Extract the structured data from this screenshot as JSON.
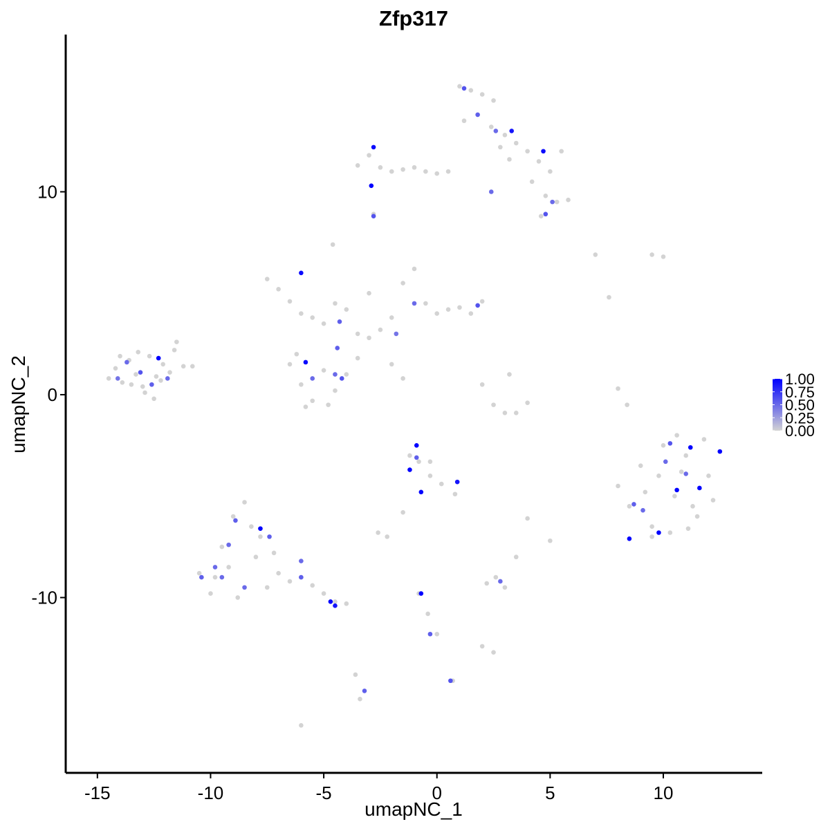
{
  "chart_data": {
    "type": "scatter",
    "title": "Zfp317",
    "x_label": "umapNC_1",
    "y_label": "umapNC_2",
    "xlim": [
      -16.4,
      14.37
    ],
    "ylim": [
      -18.64,
      17.75
    ],
    "xticks": [
      -15,
      -10,
      -5,
      0,
      5,
      10
    ],
    "yticks": [
      -10,
      0,
      10
    ],
    "color_low": "#d3d3d3",
    "color_high": "#0000ff",
    "colorbar_lim": [
      0,
      1
    ],
    "colorbar_ticks": [
      {
        "value": 0,
        "label": "0.00"
      },
      {
        "value": 0.25,
        "label": "0.25"
      },
      {
        "value": 0.5,
        "label": "0.50"
      },
      {
        "value": 0.75,
        "label": "0.75"
      },
      {
        "value": 1,
        "label": "1.00"
      }
    ],
    "x": [
      -14.5,
      -14.2,
      -13.9,
      -13.6,
      -13.3,
      -13.0,
      -12.7,
      -12.4,
      -12.1,
      -11.8,
      -11.5,
      -11.2,
      -10.8,
      -14.0,
      -13.5,
      -12.9,
      -12.2,
      -11.6,
      -13.2,
      -12.5,
      1.0,
      1.5,
      2.0,
      2.5,
      1.2,
      1.8,
      2.4,
      3.0,
      3.5,
      4.0,
      4.5,
      5.0,
      5.5,
      4.2,
      4.8,
      5.3,
      5.8,
      4.6,
      3.2,
      2.8,
      -3.5,
      -3.0,
      -2.5,
      -2.0,
      -1.5,
      -1.0,
      -0.5,
      0.0,
      0.5,
      -2.8,
      -7.5,
      -7.0,
      -6.5,
      -6.0,
      -5.5,
      -5.0,
      -4.5,
      -4.0,
      -3.5,
      -3.0,
      -2.5,
      -2.0,
      -1.5,
      -1.0,
      -0.5,
      0.0,
      0.5,
      1.0,
      1.5,
      2.0,
      -6.5,
      -6.0,
      -5.5,
      -5.0,
      -4.5,
      -4.0,
      -3.5,
      -5.8,
      -4.8,
      -6.2,
      -4.6,
      -3.0,
      -2.0,
      -1.5,
      2.0,
      2.5,
      3.0,
      3.5,
      4.0,
      3.2,
      8.0,
      8.5,
      9.0,
      9.5,
      10.0,
      10.5,
      11.0,
      11.5,
      12.0,
      12.5,
      9.2,
      9.8,
      10.3,
      10.8,
      11.3,
      11.8,
      9.5,
      10.6,
      11.1,
      12.2,
      -10.5,
      -10.0,
      -9.5,
      -9.0,
      -8.5,
      -8.0,
      -7.5,
      -7.0,
      -6.5,
      -6.0,
      -5.5,
      -5.0,
      -4.5,
      -4.0,
      -9.2,
      -8.2,
      -7.8,
      -8.8,
      -9.8,
      -7.2,
      -1.2,
      -0.8,
      -0.3,
      0.2,
      0.8,
      -2.6,
      -2.2,
      2.2,
      2.6,
      3.0,
      2.0,
      2.5,
      -3.6,
      -3.4,
      -0.8,
      -0.4,
      0.0,
      5.0,
      8.4,
      8.0,
      7.0,
      9.5,
      10.0,
      7.6,
      -0.3,
      -1.5,
      3.5,
      0.7,
      -6.0,
      4.0,
      -13.7,
      -13.1,
      -12.3,
      -11.9,
      -14.1,
      -12.6,
      1.2,
      1.8,
      2.6,
      3.3,
      4.7,
      4.8,
      5.1,
      2.4,
      -2.8,
      -2.9,
      -2.8,
      -6.0,
      -5.8,
      -4.3,
      -4.5,
      -4.4,
      -1.0,
      1.8,
      -5.5,
      -1.8,
      -4.2,
      10.3,
      11.2,
      12.5,
      10.6,
      11.6,
      9.8,
      8.5,
      8.7,
      11.0,
      10.1,
      9.1,
      -1.2,
      -0.9,
      -0.7,
      0.9,
      -0.9,
      -7.8,
      -8.9,
      -9.8,
      -10.4,
      -9.2,
      -7.4,
      -6.0,
      -4.7,
      -4.5,
      -6.0,
      -8.5,
      -9.5,
      -0.7,
      -0.3,
      0.6,
      2.8,
      -3.2
    ],
    "y": [
      0.8,
      1.3,
      0.6,
      1.7,
      1.0,
      0.4,
      1.9,
      0.9,
      1.5,
      1.1,
      2.6,
      1.4,
      1.4,
      1.9,
      0.5,
      0.1,
      0.7,
      2.2,
      2.1,
      -0.2,
      15.2,
      15.0,
      14.8,
      14.5,
      13.5,
      13.8,
      13.2,
      12.8,
      12.4,
      12.0,
      11.5,
      11.0,
      12.0,
      10.5,
      9.8,
      9.5,
      9.6,
      8.8,
      11.6,
      12.2,
      11.3,
      11.8,
      11.2,
      11.0,
      11.1,
      11.2,
      11.0,
      10.9,
      11.0,
      8.9,
      5.7,
      5.2,
      4.6,
      4.0,
      3.8,
      3.5,
      4.5,
      4.2,
      3.0,
      2.8,
      3.2,
      3.8,
      5.5,
      6.2,
      4.5,
      4.0,
      4.2,
      4.3,
      4.0,
      4.6,
      1.5,
      0.5,
      -0.3,
      1.2,
      0.2,
      1.0,
      1.8,
      -0.6,
      -0.5,
      2.0,
      7.4,
      5.0,
      1.5,
      0.8,
      0.5,
      -0.5,
      -0.9,
      -0.9,
      -0.4,
      1.0,
      -4.5,
      -5.5,
      -3.5,
      -6.5,
      -2.5,
      -5.0,
      -3.0,
      -6.0,
      -4.0,
      -2.8,
      -4.8,
      -4.0,
      -6.8,
      -3.8,
      -5.5,
      -2.2,
      -7.0,
      -2.0,
      -6.6,
      -5.2,
      -8.8,
      -9.8,
      -7.5,
      -6.0,
      -5.3,
      -8.0,
      -9.5,
      -8.8,
      -9.2,
      -9.0,
      -9.4,
      -9.8,
      -10.2,
      -10.3,
      -8.5,
      -6.5,
      -7.0,
      -10.0,
      -9.0,
      -7.8,
      -3.0,
      -3.3,
      -4.0,
      -4.4,
      -4.9,
      -6.8,
      -7.0,
      -9.3,
      -9.0,
      -9.5,
      -12.4,
      -12.7,
      -13.8,
      -15.0,
      -9.8,
      -10.8,
      -11.8,
      -7.2,
      -0.5,
      0.3,
      6.9,
      6.9,
      6.8,
      4.8,
      -3.3,
      -5.8,
      -8.0,
      -14.1,
      -16.3,
      -6.1,
      1.6,
      1.1,
      1.8,
      0.8,
      0.8,
      0.5,
      15.1,
      13.8,
      13.0,
      13.0,
      12.0,
      8.9,
      9.5,
      10.0,
      12.2,
      10.3,
      8.8,
      6.0,
      1.6,
      3.6,
      1.0,
      2.3,
      4.5,
      4.4,
      0.8,
      3.0,
      0.8,
      -2.4,
      -2.6,
      -2.8,
      -4.7,
      -4.6,
      -6.8,
      -7.1,
      -5.4,
      -3.9,
      -3.3,
      -5.7,
      -3.7,
      -2.5,
      -4.8,
      -4.3,
      -3.1,
      -6.6,
      -6.2,
      -8.5,
      -9.0,
      -7.4,
      -7.0,
      -8.2,
      -10.2,
      -10.4,
      -9.0,
      -9.5,
      -9.0,
      -9.8,
      -11.8,
      -14.1,
      -9.2,
      -14.6
    ],
    "values": [
      0,
      0,
      0,
      0,
      0,
      0,
      0,
      0,
      0,
      0,
      0,
      0,
      0,
      0,
      0,
      0,
      0,
      0,
      0,
      0,
      0,
      0,
      0,
      0,
      0,
      0,
      0,
      0,
      0,
      0,
      0,
      0,
      0,
      0,
      0,
      0,
      0,
      0,
      0,
      0,
      0,
      0,
      0,
      0,
      0,
      0,
      0,
      0,
      0,
      0,
      0,
      0,
      0,
      0,
      0,
      0,
      0,
      0,
      0,
      0,
      0,
      0,
      0,
      0,
      0,
      0,
      0,
      0,
      0,
      0,
      0,
      0,
      0,
      0,
      0,
      0,
      0,
      0,
      0,
      0,
      0,
      0,
      0,
      0,
      0,
      0,
      0,
      0,
      0,
      0,
      0,
      0,
      0,
      0,
      0,
      0,
      0,
      0,
      0,
      0,
      0,
      0,
      0,
      0,
      0,
      0,
      0,
      0,
      0,
      0,
      0,
      0,
      0,
      0,
      0,
      0,
      0,
      0,
      0,
      0,
      0,
      0,
      0,
      0,
      0,
      0,
      0,
      0,
      0,
      0,
      0,
      0,
      0,
      0,
      0,
      0,
      0,
      0,
      0,
      0,
      0,
      0,
      0,
      0,
      0,
      0,
      0,
      0,
      0,
      0,
      0,
      0,
      0,
      0,
      0,
      0,
      0,
      0,
      0,
      0,
      0.5,
      0.6,
      1.0,
      0.5,
      0.45,
      0.55,
      0.6,
      0.55,
      0.5,
      0.9,
      0.95,
      0.6,
      0.5,
      0.5,
      0.95,
      1.0,
      0.6,
      0.95,
      0.95,
      0.55,
      0.5,
      0.55,
      0.5,
      0.6,
      0.5,
      0.45,
      0.6,
      0.6,
      1.0,
      1.0,
      1.0,
      1.0,
      1.0,
      1.0,
      0.55,
      0.5,
      0.5,
      0.5,
      1.0,
      1.0,
      1.0,
      0.9,
      0.55,
      1.0,
      0.55,
      0.5,
      0.55,
      0.5,
      0.55,
      0.5,
      1.0,
      0.9,
      0.55,
      0.5,
      0.5,
      1.0,
      0.55,
      0.6,
      0.5,
      0.55
    ]
  }
}
